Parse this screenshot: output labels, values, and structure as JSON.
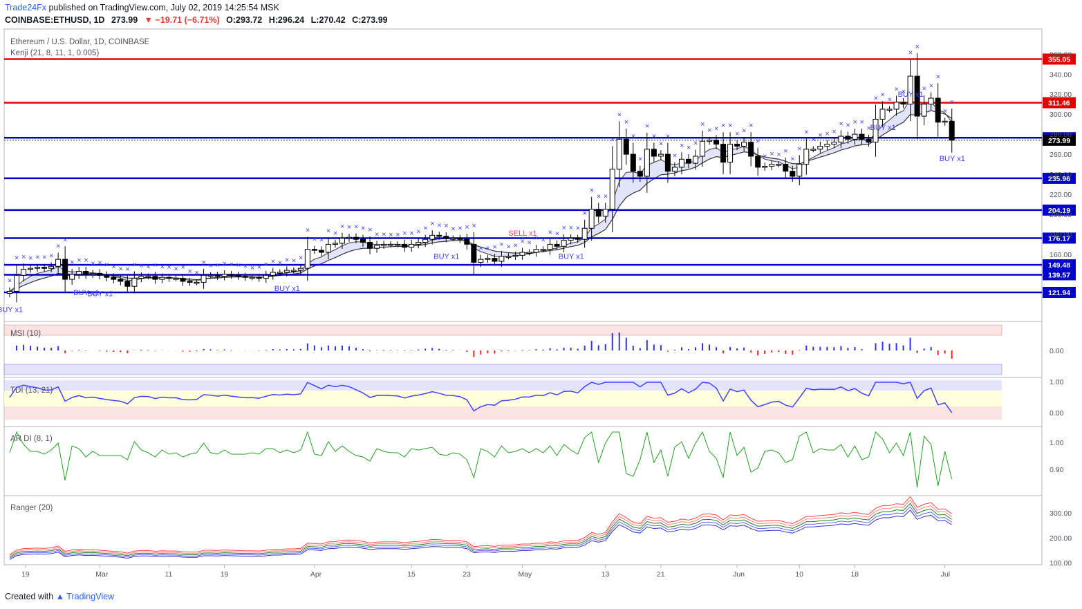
{
  "header": {
    "brand": "Trade24Fx",
    "published": "published on TradingView.com, July 02, 2019 14:25:54 MSK",
    "symbol": "COINBASE:ETHUSD, 1D",
    "last": "273.99",
    "change": "▼ −19.71 (−6.71%)",
    "open": "O:293.72",
    "high": "H:296.24",
    "low": "L:270.42",
    "close": "C:273.99"
  },
  "footer": {
    "created": "Created with",
    "brand": "TradingView"
  },
  "colors": {
    "up": "#ffffff",
    "down": "#000000",
    "resistance": "#e00000",
    "support": "#0000c8",
    "signal": "#4040ff",
    "sell": "#ff3b6b",
    "cloud": "#c8cdf5"
  },
  "chart_data": {
    "type": "candlestick",
    "title": "Ethereum / U.S. Dollar, 1D, COINBASE",
    "overlay": "Kenji (21, 8, 11, 1, 0.005)",
    "y_range": [
      95,
      383
    ],
    "x_ticks": [
      {
        "label": "19",
        "i": 3
      },
      {
        "label": "Mar",
        "i": 13
      },
      {
        "label": "11",
        "i": 23
      },
      {
        "label": "19",
        "i": 31
      },
      {
        "label": "Apr",
        "i": 44
      },
      {
        "label": "15",
        "i": 58
      },
      {
        "label": "23",
        "i": 66
      },
      {
        "label": "May",
        "i": 74
      },
      {
        "label": "13",
        "i": 86
      },
      {
        "label": "21",
        "i": 94
      },
      {
        "label": "Jun",
        "i": 105
      },
      {
        "label": "10",
        "i": 114
      },
      {
        "label": "18",
        "i": 122
      },
      {
        "label": "Jul",
        "i": 135
      }
    ],
    "price_ticks": [
      160,
      180,
      200,
      220,
      240,
      260,
      280,
      300,
      320,
      340,
      360
    ],
    "levels": [
      {
        "price": 355.05,
        "label": "355.05",
        "kind": "resistance"
      },
      {
        "price": 311.46,
        "label": "311.46",
        "kind": "resistance"
      },
      {
        "price": 276.5,
        "label": "276.50",
        "kind": "support"
      },
      {
        "price": 235.96,
        "label": "235.96",
        "kind": "support"
      },
      {
        "price": 204.19,
        "label": "204.19",
        "kind": "support"
      },
      {
        "price": 176.17,
        "label": "176.17",
        "kind": "support"
      },
      {
        "price": 149.48,
        "label": "149.48",
        "kind": "support"
      },
      {
        "price": 139.57,
        "label": "139.57",
        "kind": "support"
      },
      {
        "price": 121.94,
        "label": "121.94",
        "kind": "support"
      }
    ],
    "last_price": {
      "price": 273.99,
      "label": "273.99"
    },
    "closes": [
      123,
      139,
      145,
      146,
      147,
      146,
      148,
      155,
      135,
      140,
      143,
      140,
      141,
      139,
      137,
      135,
      133,
      128,
      136,
      138,
      138,
      135,
      137,
      136,
      136,
      133,
      132,
      132,
      139,
      139,
      138,
      140,
      139,
      138,
      137,
      137,
      136,
      139,
      142,
      142,
      144,
      144,
      146,
      165,
      164,
      162,
      170,
      171,
      176,
      177,
      175,
      172,
      166,
      169,
      170,
      170,
      170,
      167,
      170,
      172,
      175,
      179,
      178,
      176,
      176,
      175,
      170,
      152,
      155,
      156,
      153,
      158,
      158,
      159,
      162,
      162,
      165,
      165,
      170,
      168,
      174,
      176,
      175,
      186,
      205,
      198,
      205,
      245,
      275,
      260,
      243,
      238,
      265,
      258,
      260,
      243,
      247,
      255,
      251,
      258,
      273,
      274,
      270,
      252,
      270,
      268,
      272,
      258,
      247,
      248,
      250,
      250,
      243,
      238,
      250,
      265,
      265,
      268,
      270,
      272,
      278,
      275,
      280,
      275,
      272,
      295,
      305,
      305,
      312,
      310,
      338,
      298,
      310,
      316,
      292,
      293,
      274
    ],
    "signals": [
      {
        "i": 0,
        "text": "BUY x1",
        "type": "buy"
      },
      {
        "i": 11,
        "text": "BUY x1",
        "type": "buy"
      },
      {
        "i": 13,
        "text": "BUY x1",
        "type": "buy"
      },
      {
        "i": 40,
        "text": "BUY x1",
        "type": "buy"
      },
      {
        "i": 63,
        "text": "BUY x1",
        "type": "buy"
      },
      {
        "i": 81,
        "text": "BUY x1",
        "type": "buy"
      },
      {
        "i": 126,
        "text": "BUY x1",
        "type": "buy"
      },
      {
        "i": 130,
        "text": "BUY x1",
        "type": "buy"
      },
      {
        "i": 148,
        "text": "BUY x1",
        "type": "buy"
      },
      {
        "i": 74,
        "text": "SELL x1",
        "type": "sell"
      }
    ],
    "panels": [
      {
        "name": "MSI (10)",
        "ticks": [
          {
            "v": 0,
            "label": "0.00"
          }
        ]
      },
      {
        "name": "TDI (13, 21)",
        "ticks": [
          {
            "v": 1,
            "label": "1.00"
          },
          {
            "v": 0,
            "label": "0.00"
          }
        ]
      },
      {
        "name": "AR DI (8, 1)",
        "ticks": [
          {
            "v": 1,
            "label": "1.00"
          },
          {
            "v": 0.9,
            "label": "0.90"
          }
        ]
      },
      {
        "name": "Ranger (20)",
        "ticks": [
          {
            "v": 300,
            "label": "300.00"
          },
          {
            "v": 200,
            "label": "200.00"
          },
          {
            "v": 100,
            "label": "100.00"
          }
        ]
      }
    ]
  }
}
